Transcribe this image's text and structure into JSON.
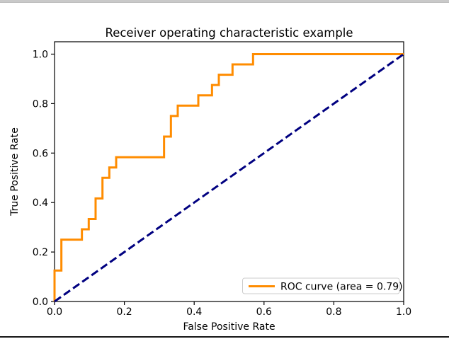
{
  "window": {
    "top_border_color": "#c9c9c9",
    "bottom_border_color": "#161616",
    "background_color": "#ffffff"
  },
  "chart_data": {
    "type": "line",
    "title": "Receiver operating characteristic example",
    "xlabel": "False Positive Rate",
    "ylabel": "True Positive Rate",
    "xlim": [
      0.0,
      1.0
    ],
    "ylim": [
      0.0,
      1.05
    ],
    "x_ticks": [
      0.0,
      0.2,
      0.4,
      0.6,
      0.8,
      1.0
    ],
    "x_tick_labels": [
      "0.0",
      "0.2",
      "0.4",
      "0.6",
      "0.8",
      "1.0"
    ],
    "y_ticks": [
      0.0,
      0.2,
      0.4,
      0.6,
      0.8,
      1.0
    ],
    "y_tick_labels": [
      "0.0",
      "0.2",
      "0.4",
      "0.6",
      "0.8",
      "1.0"
    ],
    "grid": false,
    "spine_color": "#000000",
    "series": [
      {
        "name": "ROC curve",
        "color": "#ff8c00",
        "line_style": "solid",
        "line_width": 3,
        "step": "hv",
        "points": [
          [
            0.0,
            0.0
          ],
          [
            0.0,
            0.125
          ],
          [
            0.0196,
            0.25
          ],
          [
            0.0784,
            0.2917
          ],
          [
            0.098,
            0.3333
          ],
          [
            0.1176,
            0.4167
          ],
          [
            0.1373,
            0.5
          ],
          [
            0.1569,
            0.5417
          ],
          [
            0.1765,
            0.5833
          ],
          [
            0.3137,
            0.6667
          ],
          [
            0.3333,
            0.75
          ],
          [
            0.3529,
            0.7917
          ],
          [
            0.4118,
            0.8333
          ],
          [
            0.451,
            0.875
          ],
          [
            0.4706,
            0.9167
          ],
          [
            0.5098,
            0.9583
          ],
          [
            0.5686,
            1.0
          ],
          [
            1.0,
            1.0
          ]
        ],
        "auc": 0.79
      },
      {
        "name": "chance-diagonal",
        "color": "#000080",
        "line_style": "dashed",
        "line_width": 3,
        "step": "none",
        "points": [
          [
            0.0,
            0.0
          ],
          [
            1.0,
            1.0
          ]
        ]
      }
    ],
    "legend": {
      "position": "lower right",
      "label": "ROC curve (area = 0.79)",
      "border_color": "#cccccc",
      "background_color": "#ffffff",
      "sample_color": "#ff8c00"
    }
  }
}
